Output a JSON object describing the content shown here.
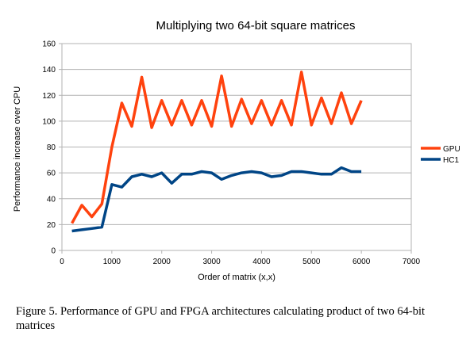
{
  "chart_data": {
    "type": "line",
    "title": "Multiplying two 64-bit square matrices",
    "xlabel": "Order of matrix (x,x)",
    "ylabel": "Performance increase over CPU",
    "xlim": [
      0,
      7000
    ],
    "ylim": [
      0,
      160
    ],
    "x_ticks": [
      "0",
      "1000",
      "2000",
      "3000",
      "4000",
      "5000",
      "6000",
      "7000"
    ],
    "y_ticks": [
      "0",
      "20",
      "40",
      "60",
      "80",
      "100",
      "120",
      "140",
      "160"
    ],
    "grid": "horizontal",
    "legend_position": "right",
    "x": [
      200,
      400,
      600,
      800,
      1000,
      1200,
      1400,
      1600,
      1800,
      2000,
      2200,
      2400,
      2600,
      2800,
      3000,
      3200,
      3400,
      3600,
      3800,
      4000,
      4200,
      4400,
      4600,
      4800,
      5000,
      5200,
      5400,
      5600,
      5800,
      6000
    ],
    "series": [
      {
        "name": "GPU",
        "color": "#ff420e",
        "values": [
          21,
          35,
          26,
          36,
          80,
          114,
          96,
          134,
          95,
          116,
          97,
          116,
          97,
          116,
          96,
          135,
          96,
          117,
          98,
          116,
          97,
          116,
          97,
          138,
          97,
          118,
          98,
          122,
          98,
          116
        ]
      },
      {
        "name": "HC1",
        "color": "#004586",
        "values": [
          15,
          16,
          17,
          18,
          51,
          49,
          57,
          59,
          57,
          60,
          52,
          59,
          59,
          61,
          60,
          55,
          58,
          60,
          61,
          60,
          57,
          58,
          61,
          61,
          60,
          59,
          59,
          64,
          61,
          61
        ]
      }
    ]
  },
  "caption": "Figure 5.   Performance of GPU and FPGA architectures calculating product of two 64-bit matrices"
}
